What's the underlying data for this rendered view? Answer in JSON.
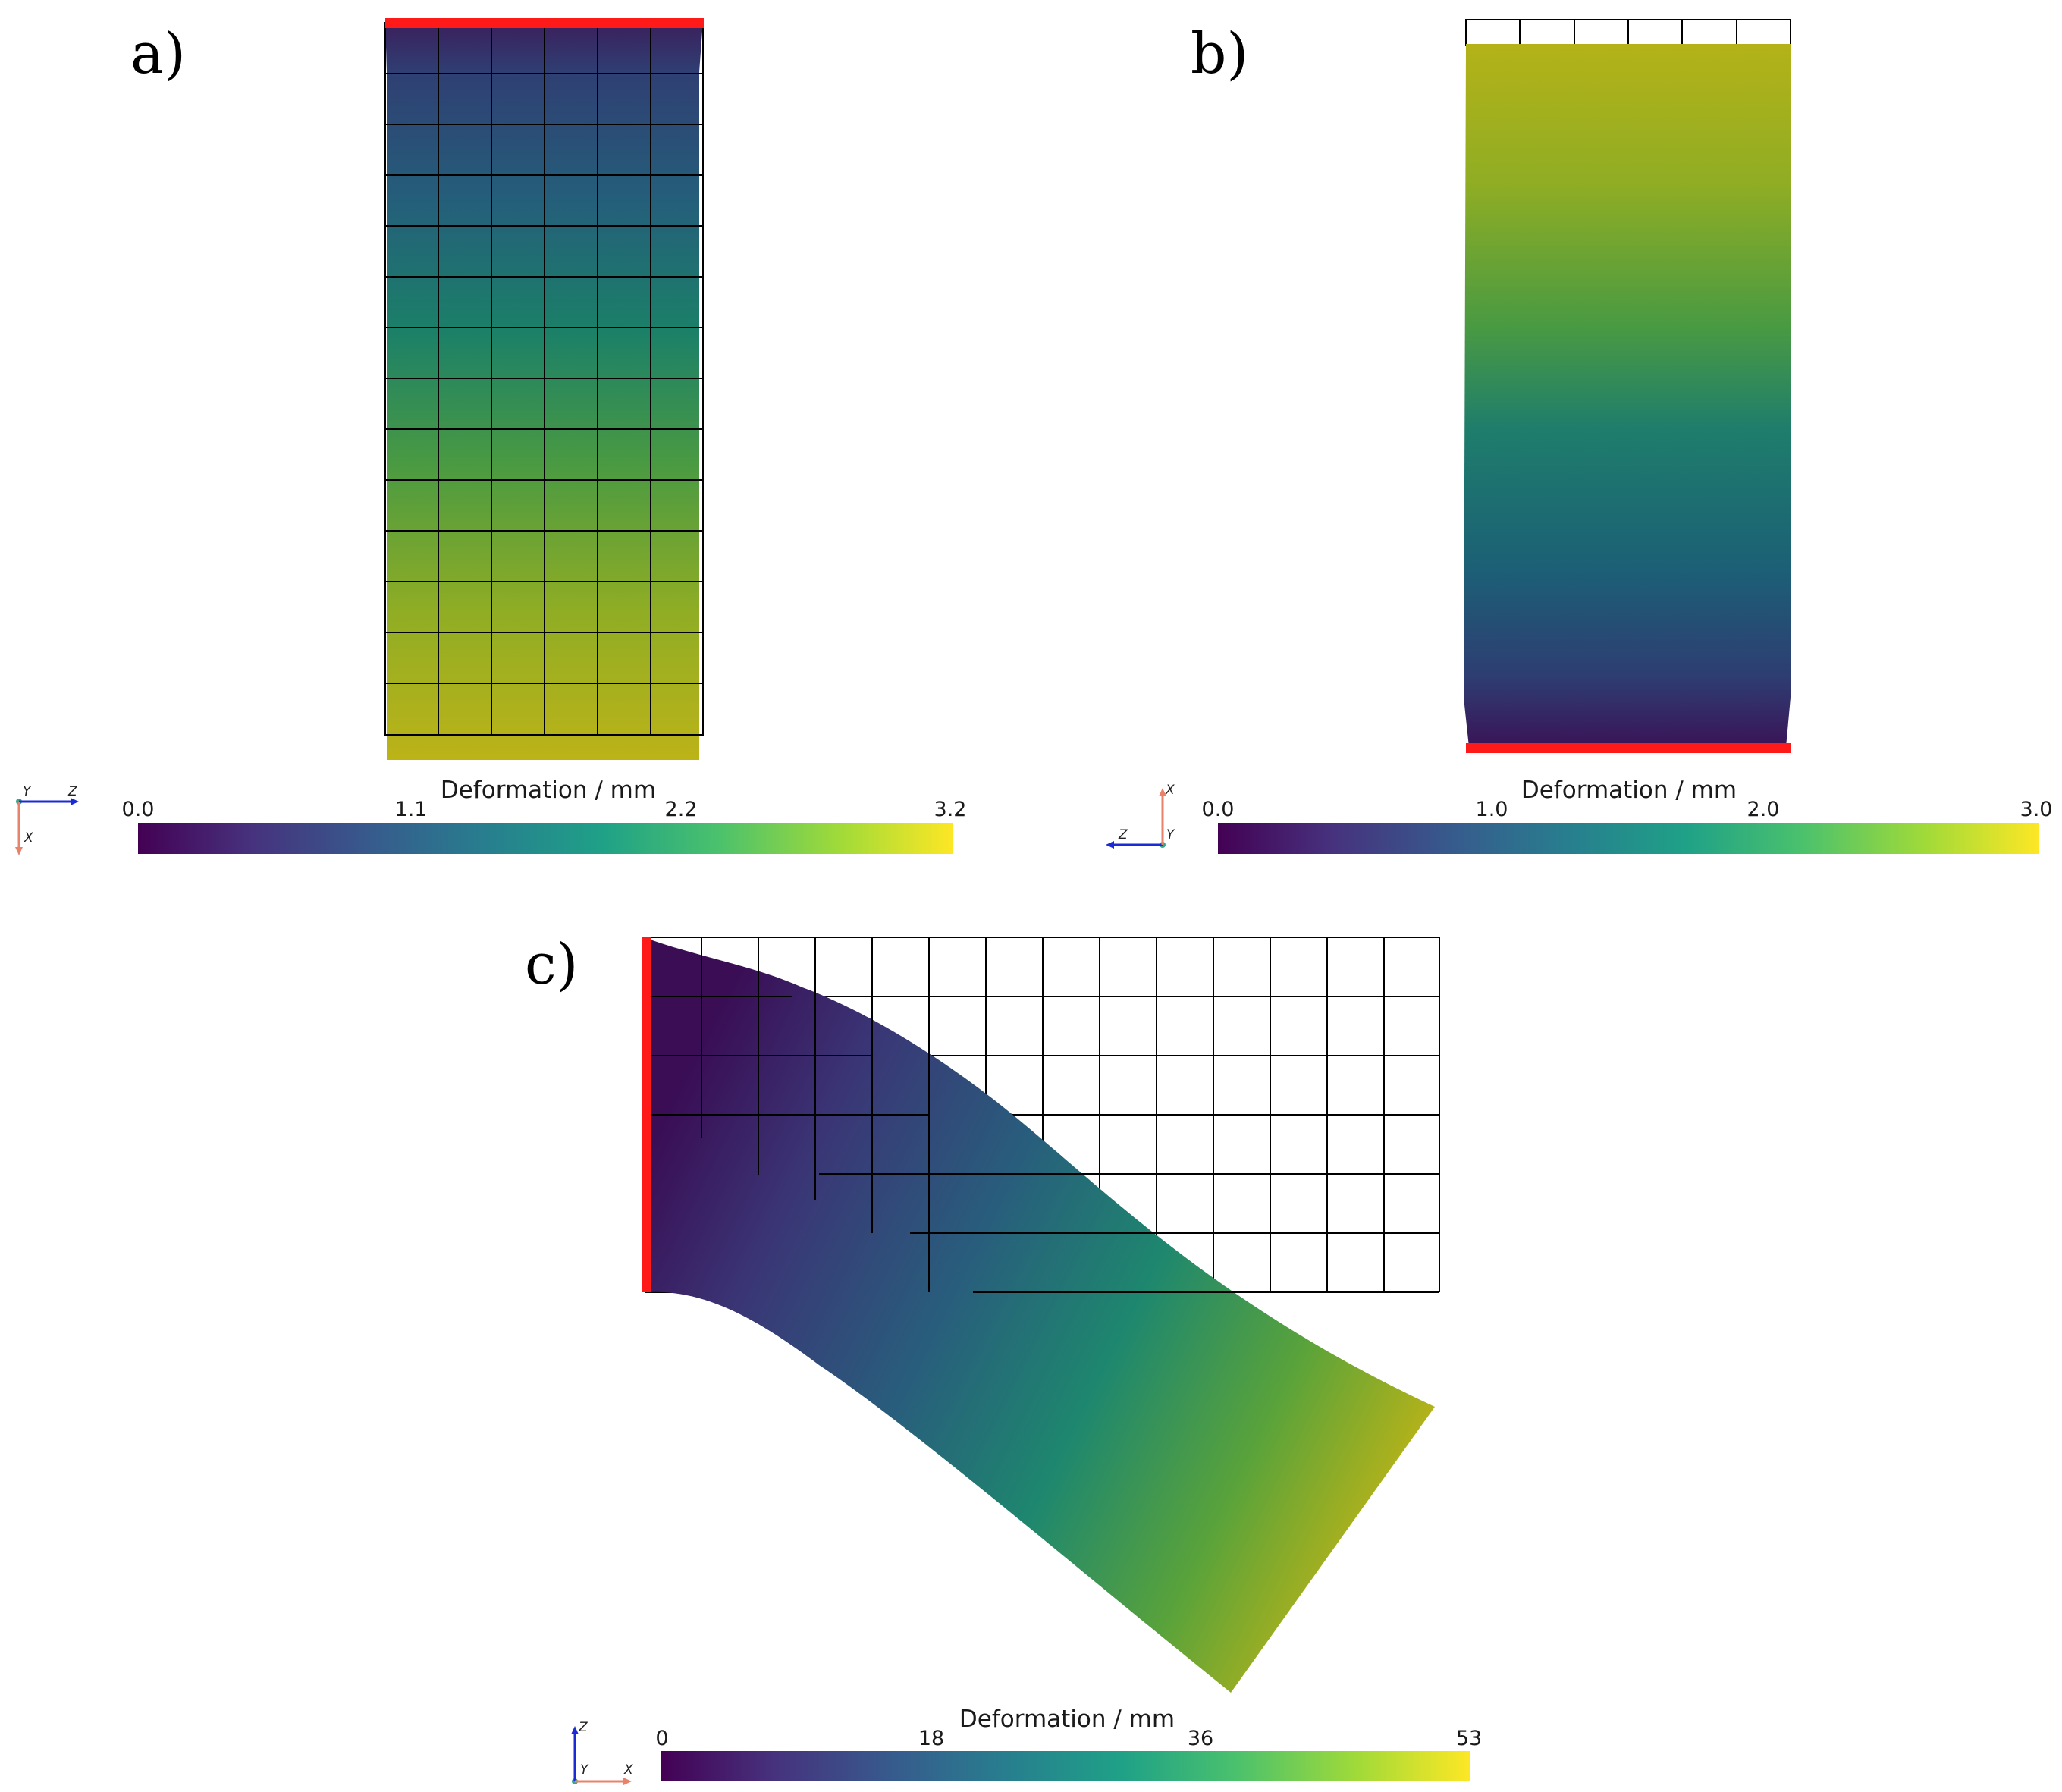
{
  "colors": {
    "fixed_boundary": "#ff1a1a",
    "mesh_lines": "#000000",
    "viridis": [
      "#440154",
      "#46327e",
      "#365c8d",
      "#277f8e",
      "#1fa187",
      "#4ac16d",
      "#a0da39",
      "#fde725"
    ],
    "axis_x": "#e8826a",
    "axis_y": "#3aa58c",
    "axis_z": "#1a2bd6"
  },
  "panels": [
    {
      "id": "a",
      "label": "a)",
      "colorbar": {
        "title": "Deformation / mm",
        "ticks": [
          "0.0",
          "1.1",
          "2.2",
          "3.2"
        ],
        "min": 0.0,
        "max": 3.2
      },
      "orientation_axes": {
        "horizontal": "Z",
        "vertical": "X",
        "out_of_plane": "Y"
      },
      "mesh": {
        "columns": 6,
        "rows": 14
      },
      "fixed_edge": "top"
    },
    {
      "id": "b",
      "label": "b)",
      "colorbar": {
        "title": "Deformation / mm",
        "ticks": [
          "0.0",
          "1.0",
          "2.0",
          "3.0"
        ],
        "min": 0.0,
        "max": 3.0
      },
      "orientation_axes": {
        "horizontal": "Z",
        "vertical": "X",
        "out_of_plane": "Y"
      },
      "mesh": {
        "columns": 6,
        "rows": 1
      },
      "fixed_edge": "bottom"
    },
    {
      "id": "c",
      "label": "c)",
      "colorbar": {
        "title": "Deformation / mm",
        "ticks": [
          "0",
          "18",
          "36",
          "53"
        ],
        "min": 0,
        "max": 53
      },
      "orientation_axes": {
        "horizontal": "X",
        "vertical": "Z",
        "out_of_plane": "Y"
      },
      "mesh": {
        "columns": 14,
        "rows": 6
      },
      "fixed_edge": "left"
    }
  ]
}
